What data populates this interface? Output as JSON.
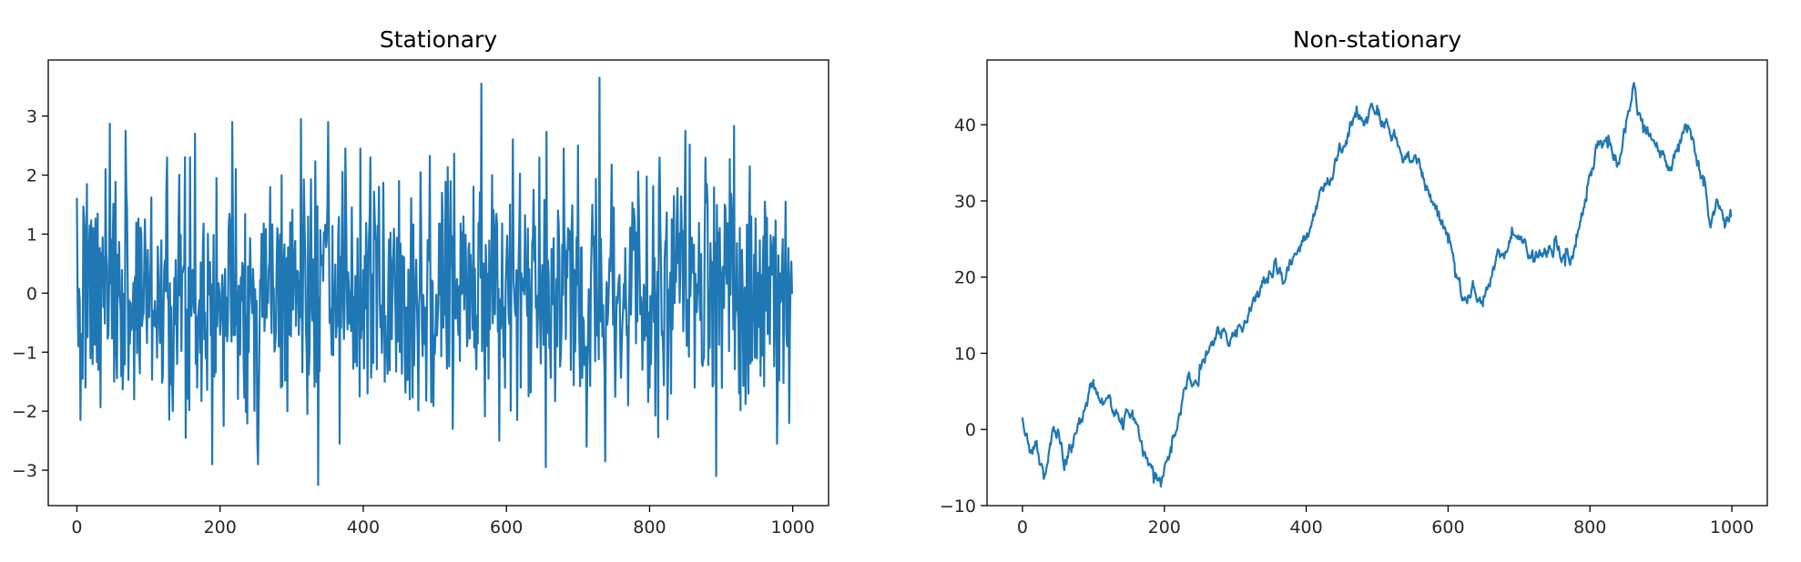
{
  "chart_data": [
    {
      "type": "line",
      "title": "Stationary",
      "xlabel": "",
      "ylabel": "",
      "xlim": [
        -40,
        1050
      ],
      "ylim": [
        -3.6,
        3.95
      ],
      "xticks": [
        0,
        200,
        400,
        600,
        800,
        1000
      ],
      "yticks": [
        -3,
        -2,
        -1,
        0,
        1,
        2,
        3
      ],
      "xtick_labels": [
        "0",
        "200",
        "400",
        "600",
        "800",
        "1000"
      ],
      "ytick_labels": [
        "−3",
        "−2",
        "−1",
        "0",
        "1",
        "2",
        "3"
      ],
      "grid": false,
      "legend": "none",
      "n_points": 1000,
      "color": "#1f77b4",
      "series": [
        {
          "description_points": [
            [
              0,
              1.6
            ],
            [
              5,
              -2.15
            ],
            [
              10,
              1.3
            ],
            [
              12,
              -1.6
            ],
            [
              18,
              1.15
            ],
            [
              30,
              -1.3
            ],
            [
              40,
              2.1
            ],
            [
              52,
              -1.5
            ],
            [
              68,
              2.75
            ],
            [
              80,
              -1.8
            ],
            [
              95,
              1.25
            ],
            [
              120,
              -1.4
            ],
            [
              126,
              2.3
            ],
            [
              140,
              -1.2
            ],
            [
              152,
              -2.45
            ],
            [
              158,
              2.3
            ],
            [
              165,
              2.7
            ],
            [
              180,
              -1.1
            ],
            [
              195,
              1.95
            ],
            [
              205,
              -2.25
            ],
            [
              222,
              2.1
            ],
            [
              240,
              -1.0
            ],
            [
              253,
              -2.9
            ],
            [
              270,
              1.8
            ],
            [
              285,
              -1.6
            ],
            [
              298,
              1.2
            ],
            [
              313,
              2.95
            ],
            [
              325,
              -1.0
            ],
            [
              337,
              -3.25
            ],
            [
              350,
              1.5
            ],
            [
              367,
              -2.55
            ],
            [
              375,
              2.45
            ],
            [
              395,
              -1.75
            ],
            [
              410,
              2.3
            ],
            [
              430,
              -1.5
            ],
            [
              450,
              1.9
            ],
            [
              465,
              -1.8
            ],
            [
              480,
              2.05
            ],
            [
              495,
              -1.85
            ],
            [
              510,
              1.7
            ],
            [
              525,
              -2.3
            ],
            [
              540,
              1.3
            ],
            [
              545,
              -0.9
            ],
            [
              565,
              3.55
            ],
            [
              575,
              -1.45
            ],
            [
              580,
              2.0
            ],
            [
              590,
              -2.5
            ],
            [
              605,
              1.5
            ],
            [
              620,
              -1.6
            ],
            [
              638,
              1.75
            ],
            [
              655,
              -2.95
            ],
            [
              672,
              1.4
            ],
            [
              690,
              -1.3
            ],
            [
              700,
              2.5
            ],
            [
              712,
              -2.6
            ],
            [
              720,
              1.5
            ],
            [
              730,
              3.65
            ],
            [
              738,
              -2.85
            ],
            [
              750,
              1.45
            ],
            [
              770,
              -1.9
            ],
            [
              785,
              1.45
            ],
            [
              800,
              -1.6
            ],
            [
              814,
              2.3
            ],
            [
              830,
              -1.7
            ],
            [
              850,
              2.75
            ],
            [
              863,
              -1.6
            ],
            [
              880,
              1.85
            ],
            [
              893,
              -3.1
            ],
            [
              905,
              1.5
            ],
            [
              925,
              -1.7
            ],
            [
              940,
              2.15
            ],
            [
              955,
              -1.4
            ],
            [
              970,
              0.75
            ],
            [
              978,
              -2.55
            ],
            [
              990,
              1.55
            ],
            [
              995,
              -2.2
            ],
            [
              999,
              0.0
            ]
          ]
        }
      ]
    },
    {
      "type": "line",
      "title": "Non-stationary",
      "xlabel": "",
      "ylabel": "",
      "xlim": [
        -50,
        1050
      ],
      "ylim": [
        -10,
        48.5
      ],
      "xticks": [
        0,
        200,
        400,
        600,
        800,
        1000
      ],
      "yticks": [
        -10,
        0,
        10,
        20,
        30,
        40
      ],
      "xtick_labels": [
        "0",
        "200",
        "400",
        "600",
        "800",
        "1000"
      ],
      "ytick_labels": [
        "−10",
        "0",
        "10",
        "20",
        "30",
        "40"
      ],
      "grid": false,
      "legend": "none",
      "n_points": 1000,
      "color": "#1f77b4",
      "series": [
        {
          "key_points": [
            [
              0,
              1.5
            ],
            [
              10,
              -3
            ],
            [
              20,
              -1.5
            ],
            [
              30,
              -6.5
            ],
            [
              40,
              -2
            ],
            [
              50,
              0
            ],
            [
              60,
              -4
            ],
            [
              70,
              -2
            ],
            [
              80,
              1.5
            ],
            [
              90,
              3.5
            ],
            [
              100,
              6.5
            ],
            [
              110,
              3.5
            ],
            [
              125,
              3
            ],
            [
              140,
              1.5
            ],
            [
              155,
              2.5
            ],
            [
              170,
              -3.5
            ],
            [
              185,
              -7
            ],
            [
              195,
              -7.5
            ],
            [
              210,
              -3
            ],
            [
              220,
              1.5
            ],
            [
              235,
              7.5
            ],
            [
              250,
              8.5
            ],
            [
              265,
              11
            ],
            [
              280,
              12
            ],
            [
              300,
              13
            ],
            [
              320,
              16
            ],
            [
              340,
              20
            ],
            [
              355,
              22
            ],
            [
              370,
              19.5
            ],
            [
              385,
              23
            ],
            [
              400,
              25
            ],
            [
              415,
              29
            ],
            [
              430,
              33
            ],
            [
              445,
              36
            ],
            [
              460,
              38.5
            ],
            [
              470,
              41
            ],
            [
              485,
              41
            ],
            [
              500,
              42.5
            ],
            [
              515,
              40
            ],
            [
              525,
              38.5
            ],
            [
              540,
              35.5
            ],
            [
              555,
              35.5
            ],
            [
              570,
              32
            ],
            [
              585,
              28
            ],
            [
              600,
              24.5
            ],
            [
              610,
              20
            ],
            [
              622,
              17
            ],
            [
              635,
              19.5
            ],
            [
              650,
              17.5
            ],
            [
              665,
              21
            ],
            [
              680,
              23
            ],
            [
              690,
              26.5
            ],
            [
              705,
              24.5
            ],
            [
              720,
              22
            ],
            [
              735,
              23
            ],
            [
              750,
              25
            ],
            [
              765,
              21.5
            ],
            [
              780,
              24
            ],
            [
              795,
              30
            ],
            [
              810,
              37
            ],
            [
              825,
              37
            ],
            [
              840,
              35
            ],
            [
              850,
              39
            ],
            [
              862,
              45.5
            ],
            [
              875,
              39
            ],
            [
              890,
              38
            ],
            [
              900,
              36.5
            ],
            [
              912,
              34
            ],
            [
              925,
              36.5
            ],
            [
              940,
              39.5
            ],
            [
              950,
              35.5
            ],
            [
              960,
              32
            ],
            [
              970,
              26.5
            ],
            [
              980,
              30
            ],
            [
              990,
              26.5
            ],
            [
              999,
              28
            ]
          ]
        }
      ]
    }
  ]
}
